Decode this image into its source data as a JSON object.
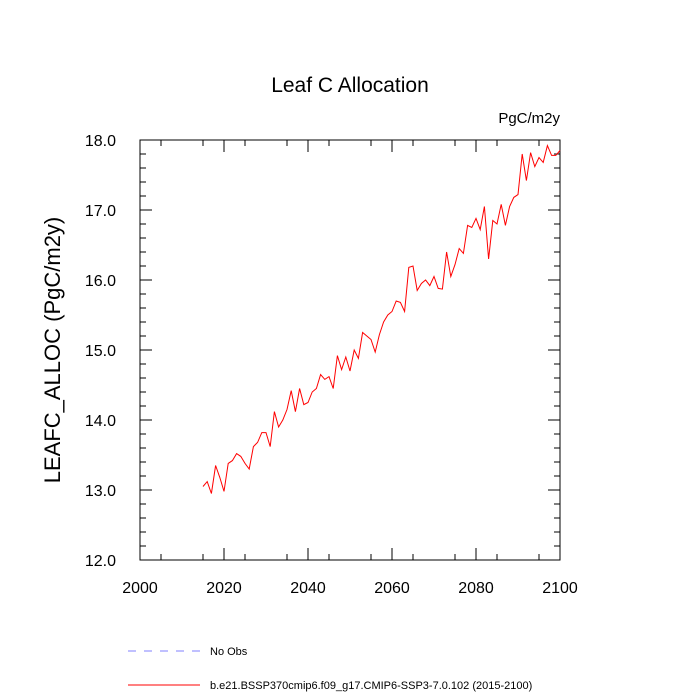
{
  "chart_data": {
    "type": "line",
    "title": "Leaf C Allocation",
    "units_label": "PgC/m2y",
    "ylabel": "LEAFC_ALLOC  (PgC/m2y)",
    "xlabel": "",
    "xlim": [
      2000,
      2100
    ],
    "ylim": [
      12.0,
      18.0
    ],
    "x_ticks": [
      2000,
      2020,
      2040,
      2060,
      2080,
      2100
    ],
    "x_tick_labels": [
      "2000",
      "2020",
      "2040",
      "2060",
      "2080",
      "2100"
    ],
    "y_ticks": [
      12.0,
      13.0,
      14.0,
      15.0,
      16.0,
      17.0,
      18.0
    ],
    "y_tick_labels": [
      "12.0",
      "13.0",
      "14.0",
      "15.0",
      "16.0",
      "17.0",
      "18.0"
    ],
    "grid": false,
    "legend_position": "bottom",
    "legend": [
      {
        "label": "No Obs",
        "color": "#8080ff",
        "style": "dashed"
      },
      {
        "label": "b.e21.BSSP370cmip6.f09_g17.CMIP6-SSP3-7.0.102 (2015-2100)",
        "color": "#ff0000",
        "style": "solid"
      }
    ],
    "series": [
      {
        "name": "b.e21.BSSP370cmip6.f09_g17.CMIP6-SSP3-7.0.102 (2015-2100)",
        "color": "#ff0000",
        "x": [
          2015,
          2016,
          2017,
          2018,
          2019,
          2020,
          2021,
          2022,
          2023,
          2024,
          2025,
          2026,
          2027,
          2028,
          2029,
          2030,
          2031,
          2032,
          2033,
          2034,
          2035,
          2036,
          2037,
          2038,
          2039,
          2040,
          2041,
          2042,
          2043,
          2044,
          2045,
          2046,
          2047,
          2048,
          2049,
          2050,
          2051,
          2052,
          2053,
          2054,
          2055,
          2056,
          2057,
          2058,
          2059,
          2060,
          2061,
          2062,
          2063,
          2064,
          2065,
          2066,
          2067,
          2068,
          2069,
          2070,
          2071,
          2072,
          2073,
          2074,
          2075,
          2076,
          2077,
          2078,
          2079,
          2080,
          2081,
          2082,
          2083,
          2084,
          2085,
          2086,
          2087,
          2088,
          2089,
          2090,
          2091,
          2092,
          2093,
          2094,
          2095,
          2096,
          2097,
          2098,
          2099,
          2100
        ],
        "values": [
          13.05,
          13.12,
          12.95,
          13.35,
          13.18,
          12.98,
          13.38,
          13.42,
          13.52,
          13.48,
          13.38,
          13.3,
          13.62,
          13.68,
          13.82,
          13.82,
          13.62,
          14.12,
          13.9,
          14.0,
          14.15,
          14.42,
          14.12,
          14.45,
          14.22,
          14.25,
          14.4,
          14.45,
          14.65,
          14.58,
          14.62,
          14.45,
          14.92,
          14.72,
          14.9,
          14.7,
          15.0,
          14.88,
          15.25,
          15.2,
          15.15,
          14.97,
          15.22,
          15.4,
          15.5,
          15.55,
          15.7,
          15.68,
          15.55,
          16.18,
          16.2,
          15.85,
          15.95,
          16.0,
          15.92,
          16.05,
          15.88,
          15.87,
          16.4,
          16.05,
          16.22,
          16.45,
          16.38,
          16.78,
          16.75,
          16.88,
          16.72,
          17.05,
          16.3,
          16.85,
          16.8,
          17.08,
          16.78,
          17.05,
          17.18,
          17.22,
          17.8,
          17.42,
          17.82,
          17.62,
          17.75,
          17.68,
          17.92,
          17.78,
          17.78,
          17.85
        ]
      }
    ]
  }
}
